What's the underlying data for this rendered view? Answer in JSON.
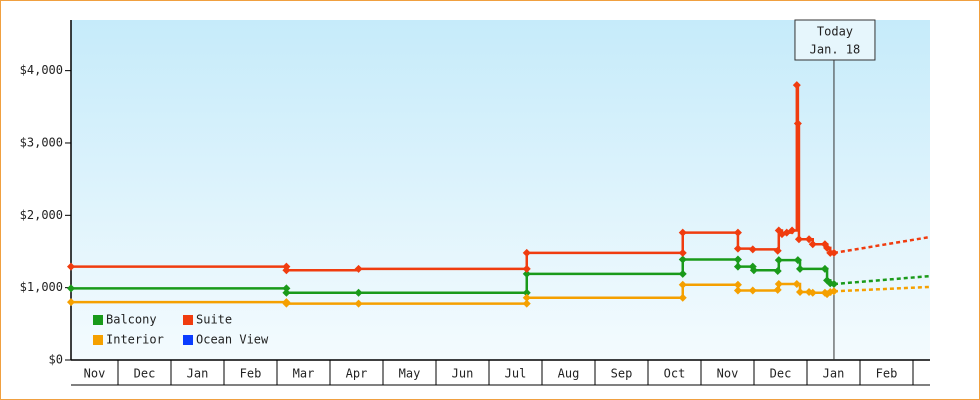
{
  "chart_data": {
    "type": "line",
    "step": true,
    "categories": [
      "Nov",
      "Dec",
      "Jan",
      "Feb",
      "Mar",
      "Apr",
      "May",
      "Jun",
      "Jul",
      "Aug",
      "Sep",
      "Oct",
      "Nov",
      "Dec",
      "Jan",
      "Feb"
    ],
    "xlim": [
      0.11,
      16.3
    ],
    "ylim": [
      0,
      4700
    ],
    "yticks": [
      {
        "value": 0,
        "label": "$0"
      },
      {
        "value": 1000,
        "label": "$1,000"
      },
      {
        "value": 2000,
        "label": "$2,000"
      },
      {
        "value": 3000,
        "label": "$3,000"
      },
      {
        "value": 4000,
        "label": "$4,000"
      }
    ],
    "annotation": {
      "x": 14.49,
      "lines": [
        "Today",
        "Jan. 18"
      ]
    },
    "legend": "lower left",
    "series": [
      {
        "name": "Balcony",
        "color": "#1a9a1a",
        "x": [
          0.11,
          4.17,
          4.17,
          5.53,
          8.7,
          8.7,
          11.64,
          11.64,
          12.68,
          12.68,
          12.96,
          12.98,
          13.43,
          13.45,
          13.81,
          13.85,
          14.32,
          14.36,
          14.42,
          14.49
        ],
        "values": [
          990,
          990,
          930,
          930,
          930,
          1190,
          1190,
          1390,
          1390,
          1290,
          1290,
          1240,
          1230,
          1380,
          1380,
          1260,
          1260,
          1100,
          1060,
          1050
        ],
        "forecast_x": [
          14.49,
          16.3
        ],
        "forecast_values": [
          1050,
          1160
        ]
      },
      {
        "name": "Suite",
        "color": "#f03c0f",
        "x": [
          0.11,
          4.17,
          4.17,
          5.53,
          8.7,
          8.7,
          11.64,
          11.64,
          12.68,
          12.68,
          12.96,
          13.43,
          13.45,
          13.51,
          13.6,
          13.7,
          13.79,
          13.81,
          13.83,
          14.02,
          14.09,
          14.32,
          14.36,
          14.42,
          14.49
        ],
        "values": [
          1290,
          1290,
          1240,
          1260,
          1260,
          1480,
          1480,
          1760,
          1760,
          1540,
          1530,
          1510,
          1790,
          1740,
          1760,
          1790,
          3800,
          3270,
          1670,
          1670,
          1600,
          1600,
          1550,
          1480,
          1480
        ],
        "forecast_x": [
          14.49,
          16.3
        ],
        "forecast_values": [
          1480,
          1700
        ]
      },
      {
        "name": "Interior",
        "color": "#f5a000",
        "x": [
          0.11,
          4.17,
          4.17,
          5.53,
          8.7,
          8.7,
          11.64,
          11.64,
          12.68,
          12.68,
          12.96,
          13.43,
          13.45,
          13.79,
          13.85,
          14.02,
          14.09,
          14.32,
          14.36,
          14.42,
          14.49
        ],
        "values": [
          800,
          800,
          780,
          780,
          780,
          860,
          860,
          1040,
          1040,
          960,
          960,
          970,
          1050,
          1050,
          940,
          940,
          930,
          930,
          910,
          940,
          950
        ],
        "forecast_x": [
          14.49,
          16.3
        ],
        "forecast_values": [
          950,
          1010
        ]
      },
      {
        "name": "Ocean View",
        "color": "#0a3cff",
        "x": [],
        "values": [],
        "forecast_x": [],
        "forecast_values": []
      }
    ]
  }
}
